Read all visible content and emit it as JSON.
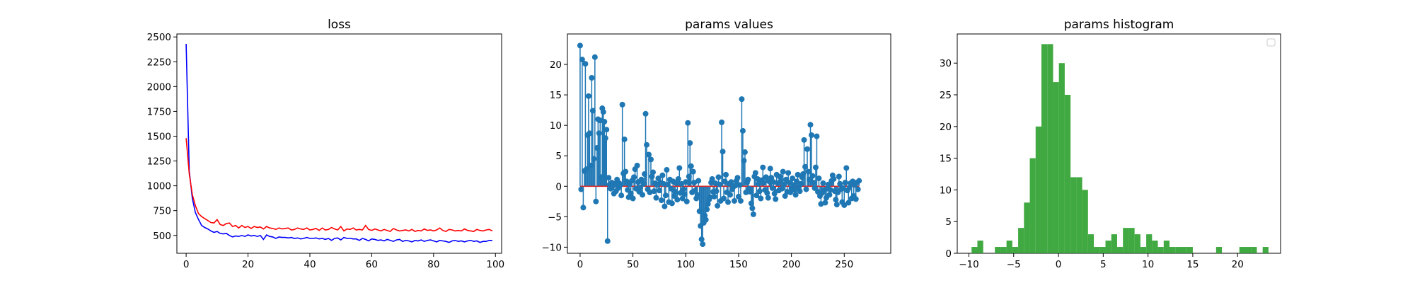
{
  "chart_data": [
    {
      "type": "line",
      "title": "loss",
      "xlim": [
        -3,
        102
      ],
      "ylim": [
        320,
        2530
      ],
      "xticks": [
        0,
        20,
        40,
        60,
        80,
        100
      ],
      "yticks": [
        500,
        750,
        1000,
        1250,
        1500,
        1750,
        2000,
        2250,
        2500
      ],
      "xtick_labels": [
        "0",
        "20",
        "40",
        "60",
        "80",
        "100"
      ],
      "ytick_labels": [
        "500",
        "750",
        "1000",
        "1250",
        "1500",
        "1750",
        "2000",
        "2250",
        "2500"
      ],
      "series": [
        {
          "color": "#0000ff",
          "x": [
            0,
            1,
            2,
            3,
            4,
            5,
            6,
            7,
            8,
            9,
            10,
            11,
            12,
            13,
            14,
            15,
            16,
            17,
            18,
            19,
            20,
            21,
            22,
            23,
            24,
            25,
            26,
            27,
            28,
            29,
            30,
            31,
            32,
            33,
            34,
            35,
            36,
            37,
            38,
            39,
            40,
            41,
            42,
            43,
            44,
            45,
            46,
            47,
            48,
            49,
            50,
            51,
            52,
            53,
            54,
            55,
            56,
            57,
            58,
            59,
            60,
            61,
            62,
            63,
            64,
            65,
            66,
            67,
            68,
            69,
            70,
            71,
            72,
            73,
            74,
            75,
            76,
            77,
            78,
            79,
            80,
            81,
            82,
            83,
            84,
            85,
            86,
            87,
            88,
            89,
            90,
            91,
            92,
            93,
            94,
            95,
            96,
            97,
            98,
            99
          ],
          "y": [
            2430,
            1150,
            870,
            730,
            660,
            600,
            580,
            565,
            545,
            530,
            540,
            520,
            515,
            520,
            500,
            485,
            495,
            490,
            500,
            490,
            505,
            495,
            500,
            490,
            500,
            460,
            505,
            490,
            485,
            470,
            485,
            480,
            480,
            475,
            480,
            470,
            475,
            465,
            470,
            480,
            470,
            470,
            475,
            465,
            470,
            460,
            470,
            450,
            470,
            475,
            455,
            480,
            470,
            470,
            465,
            465,
            450,
            470,
            460,
            445,
            465,
            460,
            450,
            455,
            445,
            460,
            450,
            440,
            455,
            460,
            440,
            450,
            445,
            435,
            450,
            445,
            455,
            440,
            450,
            455,
            445,
            435,
            450,
            445,
            440,
            430,
            445,
            450,
            440,
            445,
            435,
            445,
            450,
            440,
            445,
            430,
            440,
            440,
            450,
            450
          ]
        },
        {
          "color": "#ff0000",
          "x": [
            0,
            1,
            2,
            3,
            4,
            5,
            6,
            7,
            8,
            9,
            10,
            11,
            12,
            13,
            14,
            15,
            16,
            17,
            18,
            19,
            20,
            21,
            22,
            23,
            24,
            25,
            26,
            27,
            28,
            29,
            30,
            31,
            32,
            33,
            34,
            35,
            36,
            37,
            38,
            39,
            40,
            41,
            42,
            43,
            44,
            45,
            46,
            47,
            48,
            49,
            50,
            51,
            52,
            53,
            54,
            55,
            56,
            57,
            58,
            59,
            60,
            61,
            62,
            63,
            64,
            65,
            66,
            67,
            68,
            69,
            70,
            71,
            72,
            73,
            74,
            75,
            76,
            77,
            78,
            79,
            80,
            81,
            82,
            83,
            84,
            85,
            86,
            87,
            88,
            89,
            90,
            91,
            92,
            93,
            94,
            95,
            96,
            97,
            98,
            99
          ],
          "y": [
            1480,
            1120,
            910,
            800,
            720,
            690,
            670,
            650,
            630,
            625,
            660,
            610,
            600,
            620,
            625,
            590,
            600,
            575,
            600,
            580,
            590,
            570,
            590,
            580,
            585,
            565,
            590,
            575,
            570,
            560,
            575,
            565,
            570,
            575,
            555,
            560,
            575,
            565,
            560,
            575,
            555,
            560,
            570,
            550,
            575,
            555,
            560,
            580,
            565,
            555,
            590,
            545,
            565,
            560,
            575,
            555,
            560,
            555,
            600,
            560,
            550,
            565,
            555,
            545,
            560,
            550,
            540,
            570,
            555,
            545,
            550,
            555,
            545,
            560,
            540,
            550,
            545,
            565,
            550,
            555,
            545,
            555,
            575,
            550,
            540,
            560,
            555,
            545,
            550,
            545,
            565,
            550,
            545,
            540,
            560,
            550,
            545,
            555,
            560,
            545
          ]
        }
      ]
    },
    {
      "type": "stem",
      "title": "params values",
      "xlim": [
        -12,
        294
      ],
      "ylim": [
        -11,
        25
      ],
      "xticks": [
        0,
        50,
        100,
        150,
        200,
        250
      ],
      "yticks": [
        -10,
        -5,
        0,
        5,
        10,
        15,
        20
      ],
      "xtick_labels": [
        "0",
        "50",
        "100",
        "150",
        "200",
        "250"
      ],
      "ytick_labels": [
        "−10",
        "−5",
        "0",
        "5",
        "10",
        "15",
        "20"
      ],
      "colors": {
        "marker": "#1f77b4",
        "baseline": "#d62728"
      },
      "values": [
        23.1,
        -0.5,
        20.8,
        -3.5,
        2.5,
        20.1,
        2.8,
        8.4,
        14.8,
        8.7,
        3.4,
        17.8,
        12.4,
        4.5,
        21.2,
        -2.5,
        6.3,
        11.0,
        8.7,
        10.8,
        1.5,
        12.8,
        12.2,
        10.6,
        7.9,
        9.3,
        -9.0,
        1.4,
        0.3,
        -0.4,
        0.6,
        0.1,
        -1.2,
        0.4,
        -0.8,
        1.1,
        -0.3,
        0.5,
        0.2,
        -1.5,
        13.4,
        2.1,
        7.7,
        2.4,
        0.8,
        -0.6,
        -1.8,
        0.3,
        -1.2,
        0.9,
        -2.0,
        1.5,
        2.8,
        -0.4,
        3.4,
        0.7,
        -0.9,
        -0.2,
        1.1,
        -1.4,
        0.4,
        2.0,
        11.9,
        6.8,
        -0.5,
        5.2,
        -1.0,
        4.4,
        1.6,
        2.3,
        -0.8,
        0.5,
        -1.9,
        0.2,
        1.3,
        -0.7,
        0.6,
        -2.3,
        1.8,
        0.4,
        -3.3,
        -1.5,
        2.7,
        0.3,
        -2.6,
        1.1,
        -0.4,
        -2.8,
        0.8,
        -1.6,
        -0.9,
        0.5,
        -2.2,
        1.2,
        3.0,
        -1.1,
        0.4,
        -2.0,
        -0.5,
        -1.3,
        0.7,
        -2.5,
        10.4,
        1.6,
        7.1,
        3.3,
        -1.0,
        2.4,
        0.6,
        -0.7,
        -2.0,
        -1.4,
        0.9,
        -4.1,
        -6.5,
        -8.7,
        -9.5,
        -6.0,
        -4.8,
        -5.5,
        -3.8,
        -2.9,
        -2.2,
        -1.8,
        0.6,
        1.2,
        -0.9,
        -1.7,
        0.5,
        -0.8,
        -3.2,
        1.5,
        0.3,
        -2.4,
        10.5,
        5.7,
        -2.0,
        0.8,
        1.9,
        -1.0,
        -2.6,
        0.4,
        -1.4,
        0.7,
        -0.5,
        -0.1,
        -2.4,
        0.1,
        0.9,
        1.4,
        -1.7,
        0.2,
        -2.4,
        14.3,
        9.1,
        4.2,
        5.6,
        -1.0,
        0.6,
        1.1,
        -0.4,
        -0.9,
        -2.8,
        -3.6,
        -4.6,
        1.6,
        2.2,
        -1.5,
        1.2,
        0.4,
        -0.8,
        -2.0,
        1.0,
        3.1,
        0.6,
        -0.6,
        1.5,
        -1.1,
        -1.9,
        0.8,
        2.9,
        1.4,
        -0.3,
        0.7,
        -1.2,
        -2.1,
        1.9,
        0.5,
        -0.7,
        1.6,
        0.9,
        -0.4,
        2.4,
        0.3,
        -1.6,
        1.1,
        -0.9,
        2.2,
        0.6,
        -1.0,
        -0.3,
        1.3,
        0.2,
        -0.6,
        -1.4,
        0.8,
        1.9,
        -0.2,
        -0.8,
        0.4,
        1.5,
        2.0,
        7.6,
        3.2,
        -0.5,
        6.1,
        2.4,
        1.1,
        10.1,
        8.4,
        1.7,
        0.6,
        -0.3,
        3.1,
        8.2,
        -0.9,
        1.3,
        -1.6,
        -2.9,
        -1.1,
        0.5,
        -0.6,
        -2.7,
        -1.9,
        -0.4,
        0.3,
        -1.4,
        -0.6,
        0.9,
        1.8,
        1.2,
        -0.8,
        -2.2,
        -3.0,
        -1.0,
        1.6,
        0.4,
        -0.5,
        -2.6,
        -0.3,
        -3.1,
        0.6,
        3.0,
        -0.7,
        -2.7,
        -0.2,
        0.5,
        -2.0,
        0.8,
        -1.6,
        0.2,
        -2.1,
        0.6,
        -0.5,
        0.9
      ]
    },
    {
      "type": "bar",
      "title": "params histogram",
      "xlim": [
        -11.3,
        24.8
      ],
      "ylim": [
        0,
        34.6
      ],
      "xticks": [
        -10,
        -5,
        0,
        5,
        10,
        15,
        20
      ],
      "yticks": [
        0,
        5,
        10,
        15,
        20,
        25,
        30
      ],
      "xtick_labels": [
        "−10",
        "−5",
        "0",
        "5",
        "10",
        "15",
        "20"
      ],
      "ytick_labels": [
        "0",
        "5",
        "10",
        "15",
        "20",
        "25",
        "30"
      ],
      "color": "#2ca02c",
      "bin_width": 0.65,
      "bin_left": [
        -9.7,
        -9.05,
        -8.4,
        -7.75,
        -7.1,
        -6.45,
        -5.8,
        -5.15,
        -4.5,
        -3.85,
        -3.2,
        -2.55,
        -1.9,
        -1.25,
        -0.6,
        0.05,
        0.7,
        1.35,
        2.0,
        2.65,
        3.3,
        3.95,
        4.6,
        5.25,
        5.9,
        6.55,
        7.2,
        7.85,
        8.5,
        9.15,
        9.8,
        10.45,
        11.1,
        11.75,
        12.4,
        13.05,
        13.7,
        14.35,
        15.0,
        15.65,
        16.3,
        16.95,
        17.6,
        18.25,
        18.9,
        19.55,
        20.2,
        20.85,
        21.5,
        22.15,
        22.8
      ],
      "values": [
        1,
        2,
        0,
        0,
        1,
        1,
        2,
        1,
        4,
        8,
        15,
        20,
        33,
        33,
        27,
        30,
        25,
        12,
        12,
        10,
        3,
        1,
        1,
        2,
        3,
        1,
        4,
        4,
        3,
        1,
        3,
        2,
        1,
        2,
        1,
        1,
        1,
        1,
        0,
        0,
        0,
        0,
        1,
        0,
        0,
        0,
        1,
        1,
        1,
        0,
        1
      ]
    }
  ]
}
